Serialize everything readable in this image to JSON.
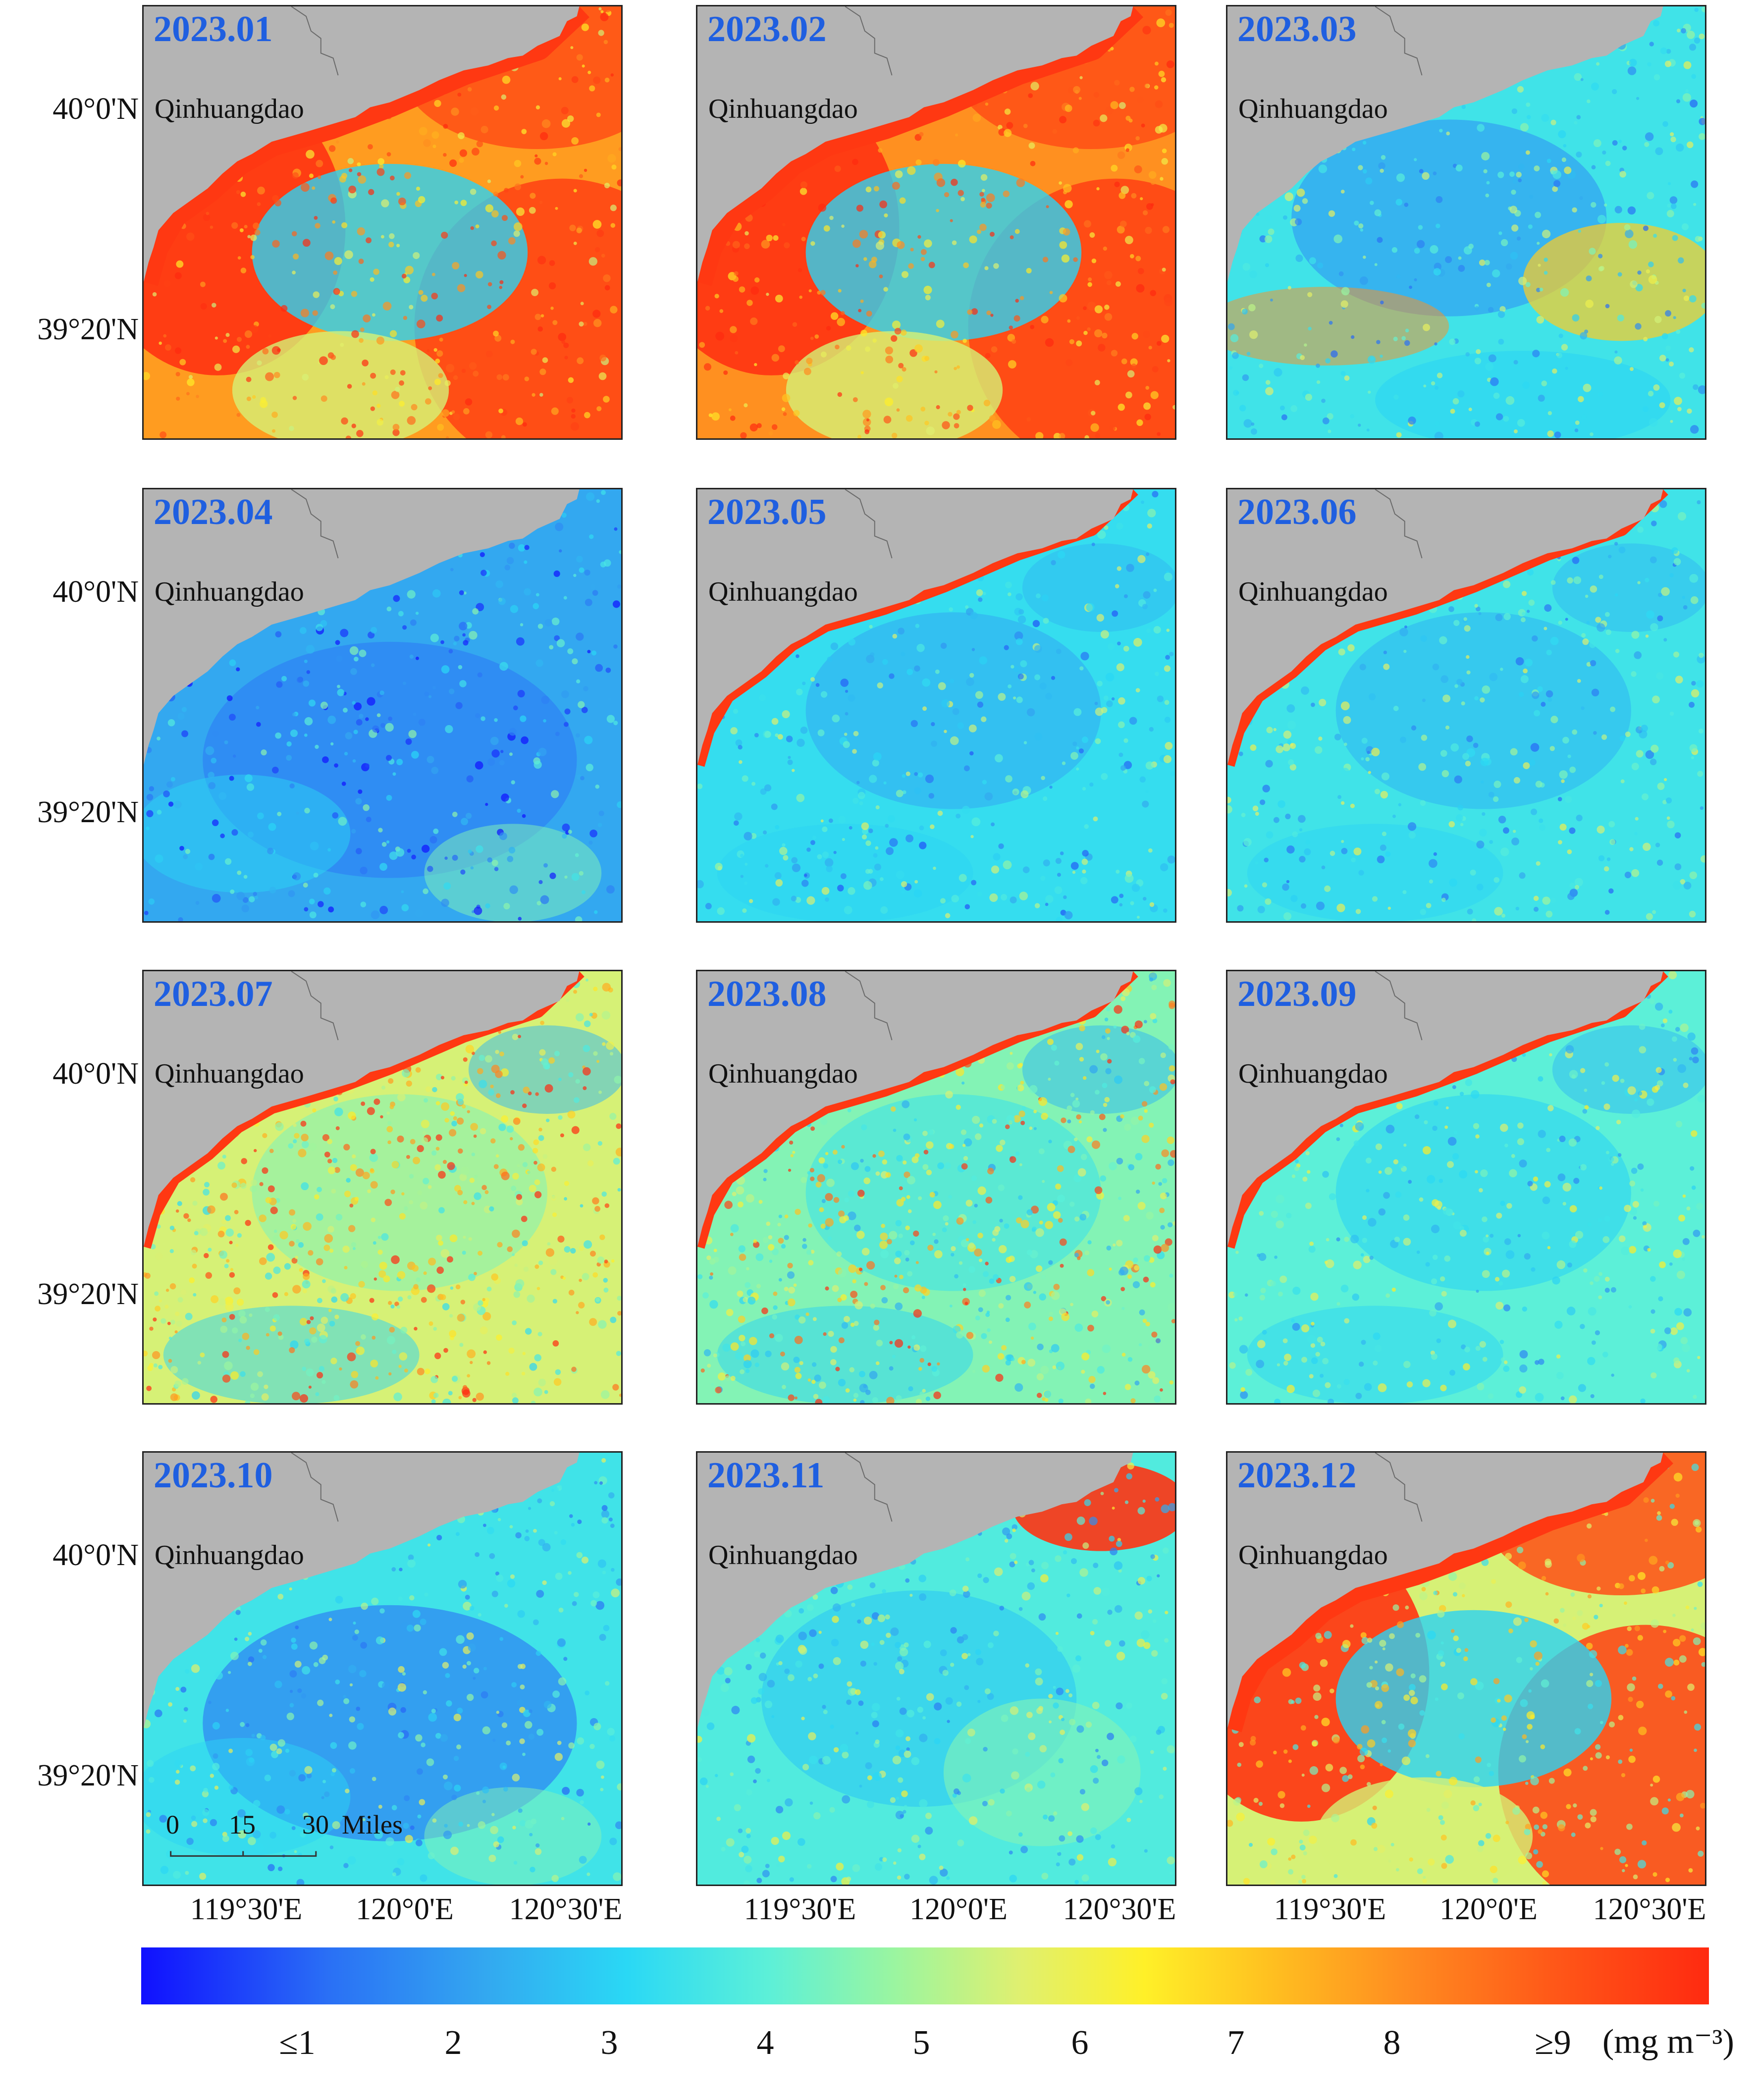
{
  "colors": {
    "land": "#b4b4b4",
    "label_blue": "#1f5fe0",
    "colormap": [
      "#1010ff",
      "#33a8f0",
      "#2ad8f5",
      "#9af5a0",
      "#fff028",
      "#ff8a20",
      "#ff2a10"
    ]
  },
  "place_label": "Qinhuangdao",
  "lat_labels": [
    "40°0'N",
    "39°20'N"
  ],
  "lon_labels": [
    "119°30'E",
    "120°0'E",
    "120°30'E"
  ],
  "scale_bar": {
    "ticks": [
      "0",
      "15",
      "30"
    ],
    "unit": "Miles"
  },
  "colorbar": {
    "ticks": [
      "≤1",
      "2",
      "3",
      "4",
      "5",
      "6",
      "7",
      "8",
      "≥9"
    ],
    "unit": "(mg  m⁻³)"
  },
  "panels": [
    {
      "label": "2023.01",
      "level": 0.78,
      "pattern": "high-coast-offshore"
    },
    {
      "label": "2023.02",
      "level": 0.8,
      "pattern": "high-coast-offshore"
    },
    {
      "label": "2023.03",
      "level": 0.35,
      "pattern": "moderate-band"
    },
    {
      "label": "2023.04",
      "level": 0.22,
      "pattern": "low"
    },
    {
      "label": "2023.05",
      "level": 0.33,
      "pattern": "coastal-high"
    },
    {
      "label": "2023.06",
      "level": 0.35,
      "pattern": "coastal-high"
    },
    {
      "label": "2023.07",
      "level": 0.55,
      "pattern": "coastal-high-speckled"
    },
    {
      "label": "2023.08",
      "level": 0.45,
      "pattern": "coastal-high-speckled"
    },
    {
      "label": "2023.09",
      "level": 0.4,
      "pattern": "coastal-high"
    },
    {
      "label": "2023.10",
      "level": 0.35,
      "pattern": "low"
    },
    {
      "label": "2023.11",
      "level": 0.38,
      "pattern": "northeast-high"
    },
    {
      "label": "2023.12",
      "level": 0.55,
      "pattern": "high-coast-offshore"
    }
  ]
}
